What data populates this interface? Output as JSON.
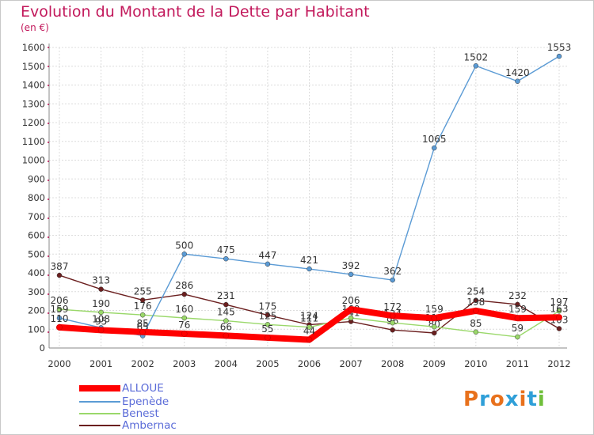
{
  "title": "Evolution du Montant de la Dette par Habitant",
  "subtitle": "(en €)",
  "logo": {
    "text": "Proxiti",
    "colors": [
      "#e8711c",
      "#2f9fd8",
      "#e8711c",
      "#2f9fd8",
      "#e8711c",
      "#2f9fd8",
      "#6fbf3a"
    ]
  },
  "chart_data": {
    "type": "line",
    "title": "Evolution du Montant de la Dette par Habitant",
    "ylabel": "(en €)",
    "xlabel": "",
    "ylim": [
      0,
      1600
    ],
    "yticks": [
      "0",
      "100",
      "200",
      "300",
      "400",
      "500",
      "600",
      "700",
      "800",
      "900",
      "1000",
      "1100",
      "1200",
      "1300",
      "1400",
      "1500",
      "1600"
    ],
    "x": [
      "2000",
      "2001",
      "2002",
      "2003",
      "2004",
      "2005",
      "2006",
      "2007",
      "2008",
      "2009",
      "2010",
      "2011",
      "2012"
    ],
    "grid": true,
    "legend_position": "bottom-left",
    "series": [
      {
        "name": "Ambernac",
        "color": "#6b1f1f",
        "values": [
          387,
          313,
          255,
          286,
          231,
          175,
          124,
          141,
          96,
          80,
          254,
          232,
          103
        ]
      },
      {
        "name": "Benest",
        "color": "#9ad86a",
        "values": [
          206,
          190,
          176,
          160,
          145,
          125,
          111,
          160,
          134,
          113,
          85,
          59,
          197
        ]
      },
      {
        "name": "Epenède",
        "color": "#5b9bd5",
        "values": [
          159,
          108,
          65,
          500,
          475,
          447,
          421,
          392,
          362,
          1065,
          1502,
          1420,
          1553
        ]
      },
      {
        "name": "ALLOUE",
        "color": "#ff0000",
        "values": [
          110,
          95,
          85,
          76,
          66,
          55,
          44,
          206,
          172,
          159,
          198,
          159,
          163
        ]
      }
    ],
    "legend": [
      "ALLOUE",
      "Epenède",
      "Benest",
      "Ambernac"
    ]
  }
}
